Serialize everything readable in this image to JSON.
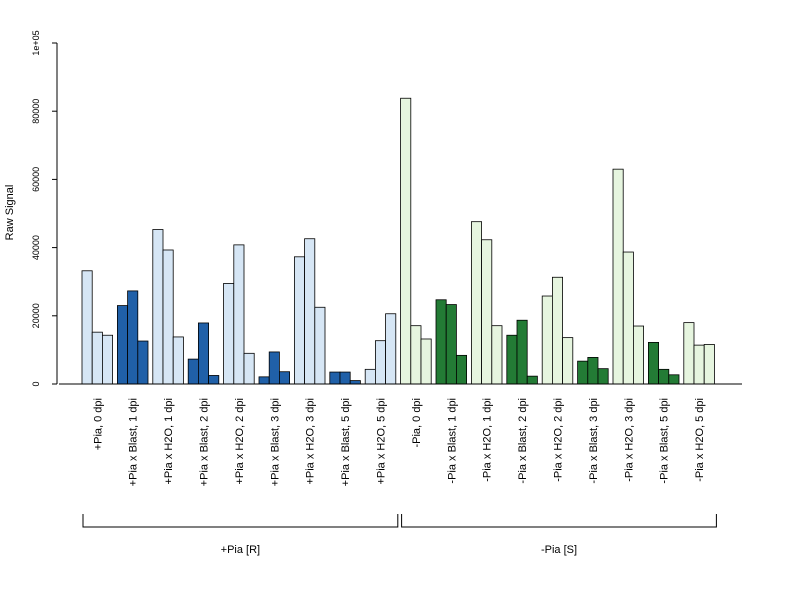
{
  "chart_data": {
    "type": "bar",
    "ylabel": "Raw Signal",
    "ylim": [
      0,
      100000
    ],
    "yticks": [
      {
        "value": 0,
        "label": "0"
      },
      {
        "value": 20000,
        "label": "20000"
      },
      {
        "value": 40000,
        "label": "40000"
      },
      {
        "value": 60000,
        "label": "60000"
      },
      {
        "value": 80000,
        "label": "80000"
      },
      {
        "value": 100000,
        "label": "1e+05"
      }
    ],
    "grid": false,
    "legend": "none",
    "categories": [
      {
        "label": "+Pia, 0 dpi",
        "values": [
          33200,
          15200,
          14300
        ],
        "color": "#d6e6f5"
      },
      {
        "label": "+Pia x Blast, 1 dpi",
        "values": [
          23000,
          27300,
          12600
        ],
        "color": "#2060a8"
      },
      {
        "label": "+Pia x H2O, 1 dpi",
        "values": [
          45300,
          39300,
          13800
        ],
        "color": "#d6e6f5"
      },
      {
        "label": "+Pia x Blast, 2 dpi",
        "values": [
          7300,
          17900,
          2500
        ],
        "color": "#2060a8"
      },
      {
        "label": "+Pia x H2O, 2 dpi",
        "values": [
          29500,
          40800,
          9000
        ],
        "color": "#d6e6f5"
      },
      {
        "label": "+Pia x Blast, 3 dpi",
        "values": [
          2100,
          9400,
          3600
        ],
        "color": "#2060a8"
      },
      {
        "label": "+Pia x H2O, 3 dpi",
        "values": [
          37300,
          42600,
          22500
        ],
        "color": "#d6e6f5"
      },
      {
        "label": "+Pia x Blast, 5 dpi",
        "values": [
          3500,
          3500,
          1000
        ],
        "color": "#2060a8"
      },
      {
        "label": "+Pia x H2O, 5 dpi",
        "values": [
          4300,
          12700,
          20600
        ],
        "color": "#d6e6f5"
      },
      {
        "label": "-Pia, 0 dpi",
        "values": [
          83800,
          17100,
          13200
        ],
        "color": "#e6f5df"
      },
      {
        "label": "-Pia x Blast, 1 dpi",
        "values": [
          24700,
          23300,
          8400
        ],
        "color": "#237b35"
      },
      {
        "label": "-Pia x H2O, 1 dpi",
        "values": [
          47600,
          42300,
          17100
        ],
        "color": "#e6f5df"
      },
      {
        "label": "-Pia x Blast, 2 dpi",
        "values": [
          14300,
          18700,
          2300
        ],
        "color": "#237b35"
      },
      {
        "label": "-Pia x H2O, 2 dpi",
        "values": [
          25800,
          31300,
          13600
        ],
        "color": "#e6f5df"
      },
      {
        "label": "-Pia x Blast, 3 dpi",
        "values": [
          6700,
          7800,
          4500
        ],
        "color": "#237b35"
      },
      {
        "label": "-Pia x H2O, 3 dpi",
        "values": [
          63000,
          38700,
          17000
        ],
        "color": "#e6f5df"
      },
      {
        "label": "-Pia x Blast, 5 dpi",
        "values": [
          12200,
          4300,
          2700
        ],
        "color": "#237b35"
      },
      {
        "label": "-Pia x H2O, 5 dpi",
        "values": [
          18000,
          11400,
          11600
        ],
        "color": "#e6f5df"
      }
    ],
    "groups": [
      {
        "label": "+Pia [R]",
        "first": 0,
        "last": 8
      },
      {
        "label": "-Pia [S]",
        "first": 9,
        "last": 17
      }
    ]
  }
}
